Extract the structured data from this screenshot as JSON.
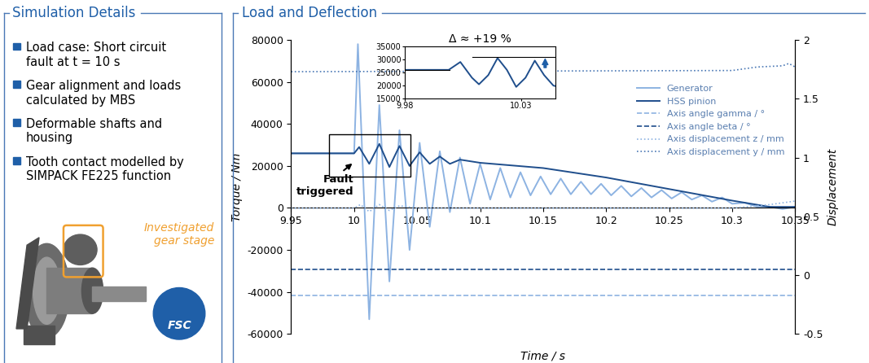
{
  "panel": {
    "title": "Simulation Details",
    "bullets": [
      "Load case: Short circuit\nfault at t = 10 s",
      "Gear alignment and loads\ncalculated by MBS",
      "Deformable shafts and\nhousing",
      "Tooth contact modelled by\nSIMPACK FE225 function"
    ],
    "image_labels": {
      "highlight": "Investigated\ngear stage",
      "badge": "FSC"
    }
  },
  "chart_data": [
    {
      "type": "line",
      "title": "Load and Deflection",
      "x_label": "Time / s",
      "y_label": "Torque / Nm",
      "y2_label": "Displacement",
      "xlim": [
        9.95,
        10.35
      ],
      "xticks": [
        9.95,
        10,
        10.05,
        10.1,
        10.15,
        10.2,
        10.25,
        10.3,
        10.35
      ],
      "ylim": [
        -60000,
        80000
      ],
      "yticks": [
        -60000,
        -40000,
        -20000,
        0,
        20000,
        40000,
        60000,
        80000
      ],
      "y2lim": [
        -0.5,
        2
      ],
      "y2ticks": [
        -0.5,
        0,
        0.5,
        1,
        1.5,
        2
      ],
      "legend": "upper right",
      "annotations": [
        {
          "text": "Fault\ntriggered",
          "x": 10.0
        }
      ],
      "series": [
        {
          "name": "Generator",
          "color": "#8db3e2",
          "line_style": "solid",
          "x": [
            9.95,
            9.97,
            9.99,
            10.0,
            10.003,
            10.0075,
            10.012,
            10.02,
            10.028,
            10.036,
            10.044,
            10.052,
            10.06,
            10.068,
            10.076,
            10.084,
            10.092,
            10.1,
            10.108,
            10.116,
            10.124,
            10.132,
            10.14,
            10.148,
            10.156,
            10.164,
            10.172,
            10.18,
            10.188,
            10.196,
            10.204,
            10.212,
            10.22,
            10.228,
            10.236,
            10.244,
            10.252,
            10.26,
            10.268,
            10.276,
            10.284,
            10.292,
            10.3,
            10.31,
            10.32,
            10.33,
            10.34,
            10.35
          ],
          "values": [
            26000,
            26000,
            26000,
            26000,
            78000,
            10000,
            -53000,
            49000,
            -35000,
            37000,
            -20000,
            31000,
            -9000,
            27000,
            -2000,
            24000,
            2000,
            21000,
            4000,
            19000,
            5000,
            17000,
            6000,
            15000,
            6500,
            14000,
            6500,
            12500,
            6500,
            11500,
            6000,
            10500,
            5500,
            9500,
            5000,
            8500,
            4500,
            7500,
            4000,
            6000,
            3000,
            5000,
            2000,
            2500,
            500,
            500,
            -500,
            500
          ]
        },
        {
          "name": "HSS pinion",
          "color": "#1f4e8c",
          "line_style": "solid",
          "x": [
            9.95,
            9.99,
            10.0,
            10.004,
            10.012,
            10.02,
            10.028,
            10.036,
            10.044,
            10.052,
            10.06,
            10.068,
            10.076,
            10.084,
            10.1,
            10.15,
            10.2,
            10.25,
            10.3,
            10.33,
            10.35
          ],
          "values": [
            26000,
            26000,
            26000,
            29000,
            21000,
            30500,
            19500,
            29500,
            20000,
            26500,
            21000,
            24500,
            21000,
            23000,
            21500,
            19000,
            14500,
            9000,
            3500,
            500,
            500
          ]
        },
        {
          "name": "Axis angle gamma / °",
          "color": "#8db3e2",
          "line_style": "dashed",
          "axis": "y2",
          "x": [
            9.95,
            10.35
          ],
          "values": [
            -0.17,
            -0.17
          ]
        },
        {
          "name": "Axis angle beta / °",
          "color": "#1f4e8c",
          "line_style": "dashed",
          "axis": "y2",
          "x": [
            9.95,
            10.35
          ],
          "values": [
            0.05,
            0.05
          ]
        },
        {
          "name": "Axis displacement z / mm",
          "color": "#8db3e2",
          "line_style": "dotted",
          "axis": "y2",
          "x": [
            9.95,
            10.0,
            10.005,
            10.012,
            10.02,
            10.028,
            10.036,
            10.05,
            10.1,
            10.3,
            10.33,
            10.35
          ],
          "values": [
            0.57,
            0.57,
            0.6,
            0.54,
            0.6,
            0.55,
            0.59,
            0.57,
            0.57,
            0.57,
            0.6,
            0.63
          ]
        },
        {
          "name": "Axis displacement y / mm",
          "color": "#4a78b5",
          "line_style": "dotted",
          "axis": "y2",
          "x": [
            9.95,
            10.3,
            10.32,
            10.34,
            10.345,
            10.35
          ],
          "values": [
            1.73,
            1.74,
            1.77,
            1.78,
            1.8,
            1.77
          ]
        }
      ]
    },
    {
      "type": "line",
      "annotation": "Δ ≈ +19 %",
      "xlim": [
        9.98,
        10.045
      ],
      "xticks": [
        9.98,
        10.03
      ],
      "ylim": [
        15000,
        35000
      ],
      "yticks": [
        15000,
        20000,
        25000,
        30000,
        35000
      ],
      "reference_levels": [
        26000,
        31000
      ],
      "series": [
        {
          "name": "HSS pinion",
          "color": "#1f4e8c",
          "line_style": "solid",
          "x": [
            9.98,
            9.99,
            9.999,
            10.004,
            10.009,
            10.012,
            10.016,
            10.02,
            10.024,
            10.028,
            10.032,
            10.036,
            10.04,
            10.044,
            10.045
          ],
          "values": [
            26000,
            26000,
            26000,
            29000,
            23000,
            20500,
            24000,
            30500,
            26000,
            19500,
            23000,
            29500,
            24000,
            20000,
            19800
          ]
        }
      ]
    }
  ]
}
